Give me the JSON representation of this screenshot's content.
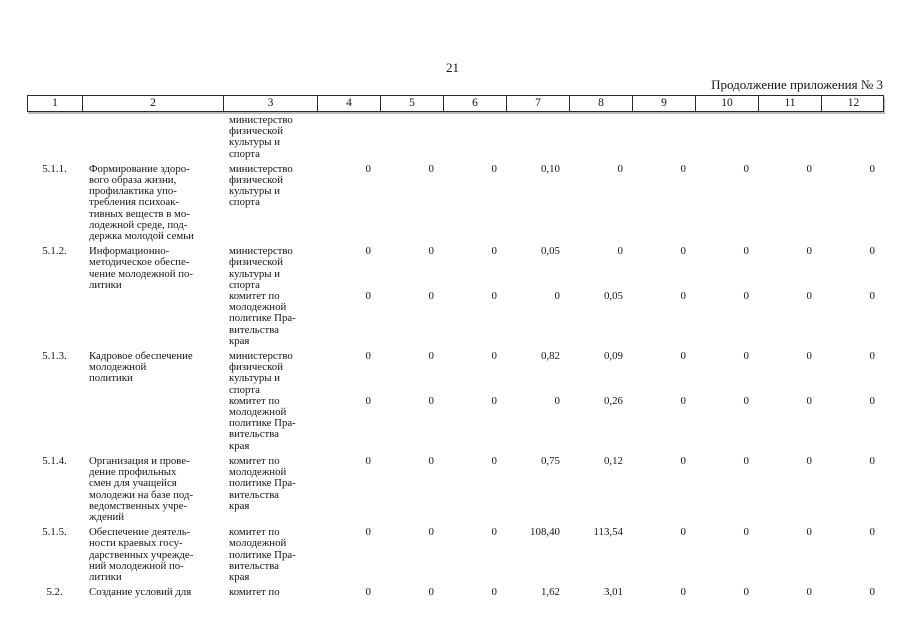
{
  "page": {
    "number": "21",
    "continuation_note": "Продолжение приложения № 3"
  },
  "table": {
    "column_numbers": [
      "1",
      "2",
      "3",
      "4",
      "5",
      "6",
      "7",
      "8",
      "9",
      "10",
      "11",
      "12"
    ],
    "carryover_executor": "министерство\nфизической\nкультуры и\nспорта",
    "rows": [
      {
        "num": "5.1.1.",
        "name": "Формирование здоро-\nвого образа жизни,\nпрофилактика упо-\nтребления психоак-\nтивных веществ в мо-\nлодежной среде, под-\nдержка молодой семьи",
        "executors": [
          {
            "name": "министерство\nфизической\nкультуры и\nспорта",
            "values": [
              "0",
              "0",
              "0",
              "0,10",
              "0",
              "0",
              "0",
              "0",
              "0"
            ]
          }
        ]
      },
      {
        "num": "5.1.2.",
        "name": "Информационно-\nметодическое обеспе-\nчение молодежной по-\nлитики",
        "executors": [
          {
            "name": "министерство\nфизической\nкультуры и\nспорта",
            "values": [
              "0",
              "0",
              "0",
              "0,05",
              "0",
              "0",
              "0",
              "0",
              "0"
            ]
          },
          {
            "name": "комитет по\nмолодежной\nполитике Пра-\nвительства\nкрая",
            "values": [
              "0",
              "0",
              "0",
              "0",
              "0,05",
              "0",
              "0",
              "0",
              "0"
            ]
          }
        ]
      },
      {
        "num": "5.1.3.",
        "name": "Кадровое обеспечение\nмолодежной\nполитики",
        "executors": [
          {
            "name": "министерство\nфизической\nкультуры и\nспорта",
            "values": [
              "0",
              "0",
              "0",
              "0,82",
              "0,09",
              "0",
              "0",
              "0",
              "0"
            ]
          },
          {
            "name": "комитет по\nмолодежной\nполитике Пра-\nвительства\nкрая",
            "values": [
              "0",
              "0",
              "0",
              "0",
              "0,26",
              "0",
              "0",
              "0",
              "0"
            ]
          }
        ]
      },
      {
        "num": "5.1.4.",
        "name": "Организация и прове-\nдение профильных\nсмен для учащейся\nмолодежи на базе под-\nведомственных учре-\nждений",
        "executors": [
          {
            "name": "комитет по\nмолодежной\nполитике Пра-\nвительства\nкрая",
            "values": [
              "0",
              "0",
              "0",
              "0,75",
              "0,12",
              "0",
              "0",
              "0",
              "0"
            ]
          }
        ]
      },
      {
        "num": "5.1.5.",
        "name": "Обеспечение деятель-\nности краевых госу-\nдарственных учрежде-\nний молодежной по-\nлитики",
        "executors": [
          {
            "name": "комитет по\nмолодежной\nполитике Пра-\nвительства\nкрая",
            "values": [
              "0",
              "0",
              "0",
              "108,40",
              "113,54",
              "0",
              "0",
              "0",
              "0"
            ]
          }
        ]
      },
      {
        "num": "5.2.",
        "name": "Создание условий для",
        "executors": [
          {
            "name": "комитет по",
            "values": [
              "0",
              "0",
              "0",
              "1,62",
              "3,01",
              "0",
              "0",
              "0",
              "0"
            ]
          }
        ]
      }
    ]
  }
}
